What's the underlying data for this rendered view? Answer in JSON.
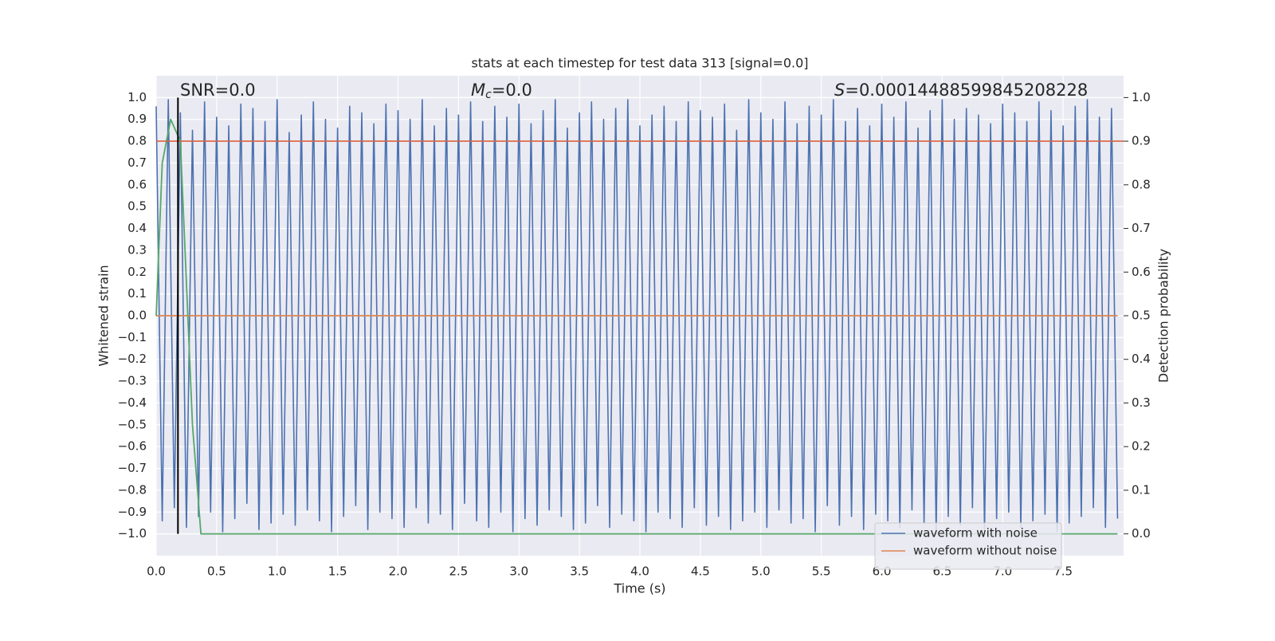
{
  "chart_data": {
    "type": "line",
    "title": "stats at each timestep for test data 313 [signal=0.0]",
    "xlabel": "Time (s)",
    "ylabel": "Whitened strain",
    "y2label": "Detection probability",
    "annotations": [
      {
        "text": "SNR=0.0"
      },
      {
        "symbol": "M",
        "subscript": "c",
        "text": "=0.0"
      },
      {
        "symbol": "S",
        "text": "=0.00014488599845208228"
      }
    ],
    "xlim": [
      0,
      8
    ],
    "ylim": [
      -1.1,
      1.1
    ],
    "y2lim": [
      -0.05,
      1.05
    ],
    "xticks": [
      {
        "value": 0,
        "label": "0.0"
      },
      {
        "value": 0.5,
        "label": "0.5"
      },
      {
        "value": 1,
        "label": "1.0"
      },
      {
        "value": 1.5,
        "label": "1.5"
      },
      {
        "value": 2,
        "label": "2.0"
      },
      {
        "value": 2.5,
        "label": "2.5"
      },
      {
        "value": 3,
        "label": "3.0"
      },
      {
        "value": 3.5,
        "label": "3.5"
      },
      {
        "value": 4,
        "label": "4.0"
      },
      {
        "value": 4.5,
        "label": "4.5"
      },
      {
        "value": 5,
        "label": "5.0"
      },
      {
        "value": 5.5,
        "label": "5.5"
      },
      {
        "value": 6,
        "label": "6.0"
      },
      {
        "value": 6.5,
        "label": "6.5"
      },
      {
        "value": 7,
        "label": "7.0"
      },
      {
        "value": 7.5,
        "label": "7.5"
      }
    ],
    "yticks": [
      {
        "value": 1,
        "label": "1.0"
      },
      {
        "value": 0.9,
        "label": "0.9"
      },
      {
        "value": 0.8,
        "label": "0.8"
      },
      {
        "value": 0.7,
        "label": "0.7"
      },
      {
        "value": 0.6,
        "label": "0.6"
      },
      {
        "value": 0.5,
        "label": "0.5"
      },
      {
        "value": 0.4,
        "label": "0.4"
      },
      {
        "value": 0.3,
        "label": "0.3"
      },
      {
        "value": 0.2,
        "label": "0.2"
      },
      {
        "value": 0.1,
        "label": "0.1"
      },
      {
        "value": 0,
        "label": "0.0"
      },
      {
        "value": -0.1,
        "label": "−0.1"
      },
      {
        "value": -0.2,
        "label": "−0.2"
      },
      {
        "value": -0.3,
        "label": "−0.3"
      },
      {
        "value": -0.4,
        "label": "−0.4"
      },
      {
        "value": -0.5,
        "label": "−0.5"
      },
      {
        "value": -0.6,
        "label": "−0.6"
      },
      {
        "value": -0.7,
        "label": "−0.7"
      },
      {
        "value": -0.8,
        "label": "−0.8"
      },
      {
        "value": -0.9,
        "label": "−0.9"
      },
      {
        "value": -1,
        "label": "−1.0"
      }
    ],
    "y2ticks": [
      {
        "value": 0,
        "label": "0.0"
      },
      {
        "value": 0.1,
        "label": "0.1"
      },
      {
        "value": 0.2,
        "label": "0.2"
      },
      {
        "value": 0.3,
        "label": "0.3"
      },
      {
        "value": 0.4,
        "label": "0.4"
      },
      {
        "value": 0.5,
        "label": "0.5"
      },
      {
        "value": 0.6,
        "label": "0.6"
      },
      {
        "value": 0.7,
        "label": "0.7"
      },
      {
        "value": 0.8,
        "label": "0.8"
      },
      {
        "value": 0.9,
        "label": "0.9"
      },
      {
        "value": 1,
        "label": "1.0"
      }
    ],
    "grid": true,
    "legend": "lower right",
    "series": [
      {
        "name": "waveform with noise",
        "color": "#4c72b0",
        "x": [
          0,
          0.05,
          0.1,
          0.15,
          0.2,
          0.25,
          0.3,
          0.35,
          0.4,
          0.45,
          0.5,
          0.55,
          0.6,
          0.65,
          0.7,
          0.75,
          0.8,
          0.85,
          0.9,
          0.95,
          1,
          1.05,
          1.1,
          1.15,
          1.2,
          1.25,
          1.3,
          1.35,
          1.4,
          1.45,
          1.5,
          1.55,
          1.6,
          1.65,
          1.7,
          1.75,
          1.8,
          1.85,
          1.9,
          1.95,
          2,
          2.05,
          2.1,
          2.15,
          2.2,
          2.25,
          2.3,
          2.35,
          2.4,
          2.45,
          2.5,
          2.55,
          2.6,
          2.65,
          2.7,
          2.75,
          2.8,
          2.85,
          2.9,
          2.95,
          3,
          3.05,
          3.1,
          3.15,
          3.2,
          3.25,
          3.3,
          3.35,
          3.4,
          3.45,
          3.5,
          3.55,
          3.6,
          3.65,
          3.7,
          3.75,
          3.8,
          3.85,
          3.9,
          3.95,
          4,
          4.05,
          4.1,
          4.15,
          4.2,
          4.25,
          4.3,
          4.35,
          4.4,
          4.45,
          4.5,
          4.55,
          4.6,
          4.65,
          4.7,
          4.75,
          4.8,
          4.85,
          4.9,
          4.95,
          5,
          5.05,
          5.1,
          5.15,
          5.2,
          5.25,
          5.3,
          5.35,
          5.4,
          5.45,
          5.5,
          5.55,
          5.6,
          5.65,
          5.7,
          5.75,
          5.8,
          5.85,
          5.9,
          5.95,
          6,
          6.05,
          6.1,
          6.15,
          6.2,
          6.25,
          6.3,
          6.35,
          6.4,
          6.45,
          6.5,
          6.55,
          6.6,
          6.65,
          6.7,
          6.75,
          6.8,
          6.85,
          6.9,
          6.95,
          7,
          7.05,
          7.1,
          7.15,
          7.2,
          7.25,
          7.3,
          7.35,
          7.4,
          7.45,
          7.5,
          7.55,
          7.6,
          7.65,
          7.7,
          7.75,
          7.8,
          7.85,
          7.9,
          7.95
        ],
        "values": [
          0.96,
          -0.94,
          0.99,
          -0.88,
          0.93,
          -0.97,
          0.85,
          -0.92,
          0.98,
          -0.9,
          0.91,
          -0.99,
          0.87,
          -0.93,
          0.97,
          -0.86,
          0.95,
          -0.98,
          0.89,
          -0.95,
          0.99,
          -0.91,
          0.84,
          -0.96,
          0.92,
          -0.89,
          0.98,
          -0.94,
          0.9,
          -0.99,
          0.86,
          -0.92,
          0.96,
          -0.87,
          0.93,
          -0.98,
          0.88,
          -0.9,
          0.97,
          -0.93,
          0.94,
          -0.97,
          0.9,
          -0.88,
          0.99,
          -0.95,
          0.87,
          -0.91,
          0.95,
          -0.98,
          0.92,
          -0.86,
          0.98,
          -0.94,
          0.89,
          -0.97,
          0.96,
          -0.9,
          0.91,
          -0.99,
          0.97,
          -0.93,
          0.88,
          -0.96,
          0.94,
          -0.89,
          0.99,
          -0.92,
          0.86,
          -0.98,
          0.93,
          -0.95,
          0.98,
          -0.87,
          0.9,
          -0.97,
          0.95,
          -0.91,
          0.99,
          -0.94,
          0.87,
          -0.99,
          0.92,
          -0.9,
          0.96,
          -0.93,
          0.89,
          -0.97,
          0.98,
          -0.88,
          0.94,
          -0.96,
          0.91,
          -0.92,
          0.97,
          -0.98,
          0.85,
          -0.94,
          0.99,
          -0.9,
          0.93,
          -0.97,
          0.9,
          -0.89,
          0.98,
          -0.95,
          0.88,
          -0.93,
          0.96,
          -0.99,
          0.92,
          -0.87,
          0.99,
          -0.96,
          0.89,
          -0.92,
          0.95,
          -0.98,
          0.87,
          -0.91,
          0.97,
          -0.94,
          0.91,
          -0.97,
          0.98,
          -0.89,
          0.86,
          -0.95,
          0.94,
          -0.99,
          0.99,
          -0.92,
          0.9,
          -0.96,
          0.95,
          -0.88,
          0.92,
          -0.98,
          0.88,
          -0.93,
          0.97,
          -0.9,
          0.93,
          -0.97,
          0.89,
          -0.94,
          0.98,
          -0.91,
          0.94,
          -0.99,
          0.87,
          -0.95,
          0.96,
          -0.92,
          0.99,
          -0.88,
          0.91,
          -0.97,
          0.95,
          -0.93
        ]
      },
      {
        "name": "waveform without noise",
        "color": "#dd8452",
        "x": [
          0,
          7.95
        ],
        "values": [
          0,
          0
        ]
      },
      {
        "color": "#55a868",
        "axis": "y2",
        "x": [
          0,
          0.05,
          0.12,
          0.2,
          0.3,
          0.37,
          7.95
        ],
        "values": [
          0.5,
          0.85,
          0.95,
          0.9,
          0.25,
          0,
          0
        ]
      }
    ],
    "threshold": {
      "axis": "y2",
      "value": 0.9,
      "color": "#d9623f"
    },
    "vline": {
      "x": 0.18,
      "y": [
        -1,
        1
      ],
      "color": "#000000"
    }
  }
}
